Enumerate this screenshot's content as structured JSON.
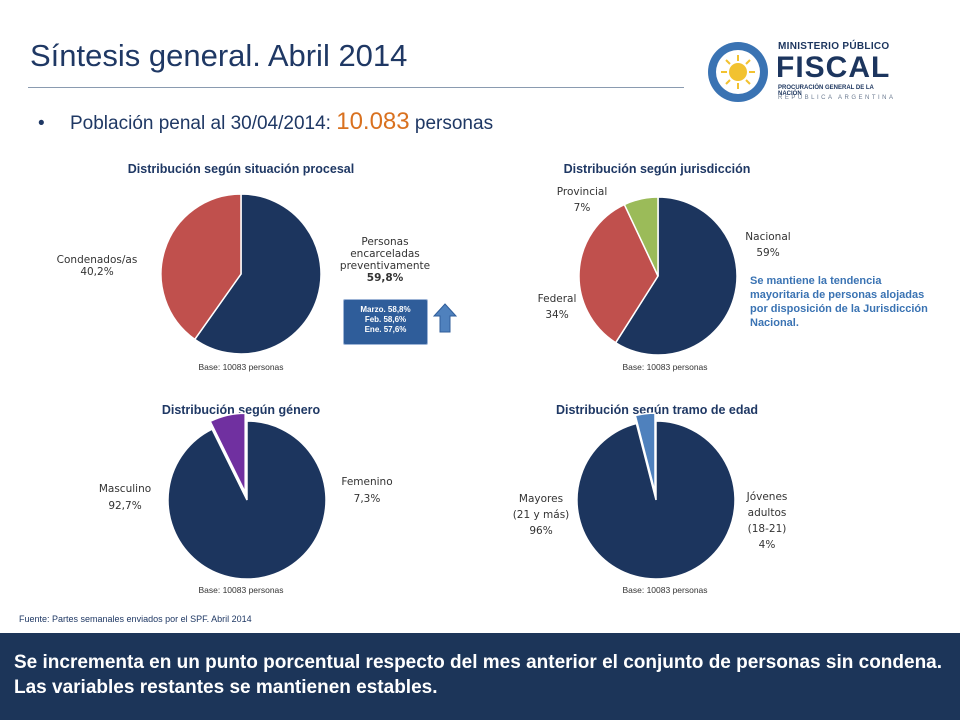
{
  "page": {
    "title": "Síntesis general. Abril 2014",
    "bullet_label": "Población penal al 30/04/2014",
    "bullet_colon": ": ",
    "bullet_value": "10.083",
    "bullet_unit": " personas",
    "source": "Fuente: Partes semanales enviados por el SPF. Abril  2014",
    "footer_text": "Se incrementa en un punto porcentual respecto del mes anterior el conjunto de personas sin condena.  Las variables restantes se mantienen estables.",
    "trend_lines": [
      "Marzo. 58,8%",
      "Feb. 58,6%",
      "Ene. 57,6%"
    ],
    "note": "Se mantiene la tendencia mayoritaria de personas alojadas por disposición de la Jurisdicción Nacional."
  },
  "logo": {
    "ministerio": "MINISTERIO PÚBLICO",
    "fiscal": "FISCAL",
    "procuracion": "PROCURACIÓN GENERAL DE LA NACIÓN",
    "republica": "REPÚBLICA ARGENTINA",
    "ring_color": "#3a73b3",
    "sun_color": "#f2c230"
  },
  "colors": {
    "navy": "#1c355e",
    "red": "#c0504d",
    "green": "#9bbb59",
    "purple": "#7030a0",
    "lightblue": "#4f81bd",
    "orange": "#d9711f"
  },
  "chart_data": [
    {
      "type": "pie",
      "title": "Distribución según situación procesal",
      "base_label": "Base: 10083 personas",
      "slices": [
        {
          "label_lines": [
            "Personas",
            "encarceladas",
            "preventivamente"
          ],
          "value_text": "59,8%",
          "value": 59.8,
          "color": "#1c355e"
        },
        {
          "label_lines": [
            "Condenados/as"
          ],
          "value_text": "40,2%",
          "value": 40.2,
          "color": "#c0504d"
        }
      ]
    },
    {
      "type": "pie",
      "title": "Distribución según jurisdicción",
      "base_label": "Base: 10083 personas",
      "slices": [
        {
          "label_lines": [
            "Nacional"
          ],
          "value_text": "59%",
          "value": 59,
          "color": "#1c355e"
        },
        {
          "label_lines": [
            "Federal"
          ],
          "value_text": "34%",
          "value": 34,
          "color": "#c0504d"
        },
        {
          "label_lines": [
            "Provincial"
          ],
          "value_text": "7%",
          "value": 7,
          "color": "#9bbb59"
        }
      ]
    },
    {
      "type": "pie",
      "title": "Distribución según género",
      "base_label": "Base: 10083 personas",
      "slices": [
        {
          "label_lines": [
            "Masculino"
          ],
          "value_text": "92,7%",
          "value": 92.7,
          "color": "#1c355e"
        },
        {
          "label_lines": [
            "Femenino"
          ],
          "value_text": "7,3%",
          "value": 7.3,
          "color": "#7030a0"
        }
      ]
    },
    {
      "type": "pie",
      "title": "Distribución según tramo de edad",
      "base_label": "Base: 10083 personas",
      "slices": [
        {
          "label_lines": [
            "Mayores",
            "(21 y más)"
          ],
          "value_text": "96%",
          "value": 96,
          "color": "#1c355e"
        },
        {
          "label_lines": [
            "Jóvenes",
            "adultos",
            "(18-21)"
          ],
          "value_text": "4%",
          "value": 4,
          "color": "#4f81bd"
        }
      ]
    }
  ]
}
